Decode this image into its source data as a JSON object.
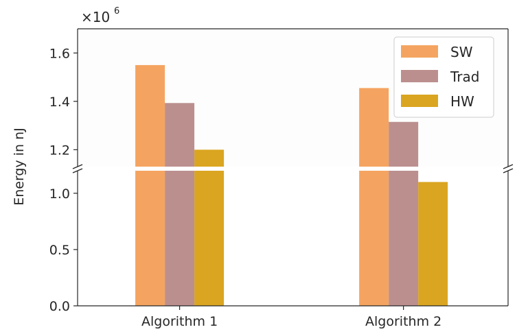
{
  "chart_data": {
    "type": "bar",
    "title": "",
    "xlabel": "",
    "ylabel": "Energy in nJ",
    "categories": [
      "Algorithm 1",
      "Algorithm 2"
    ],
    "series": [
      {
        "name": "SW",
        "color": "#f4a460",
        "values": [
          1550000,
          1455000
        ]
      },
      {
        "name": "Trad",
        "color": "#bc8f8f",
        "values": [
          1393000,
          1315000
        ]
      },
      {
        "name": "HW",
        "color": "#daa520",
        "values": [
          1200000,
          1100000
        ]
      }
    ],
    "broken_axis": true,
    "upper_ylim": [
      1130000,
      1700000
    ],
    "lower_ylim": [
      0,
      1200000
    ],
    "upper_yticks": [
      1200000,
      1400000,
      1600000
    ],
    "upper_ytick_labels": [
      "1.2",
      "1.4",
      "1.6"
    ],
    "lower_yticks": [
      0,
      500000,
      1000000
    ],
    "lower_ytick_labels": [
      "0.0",
      "0.5",
      "1.0"
    ],
    "scale_label": "×10",
    "scale_exponent": "6",
    "legend_position": "top-right"
  }
}
